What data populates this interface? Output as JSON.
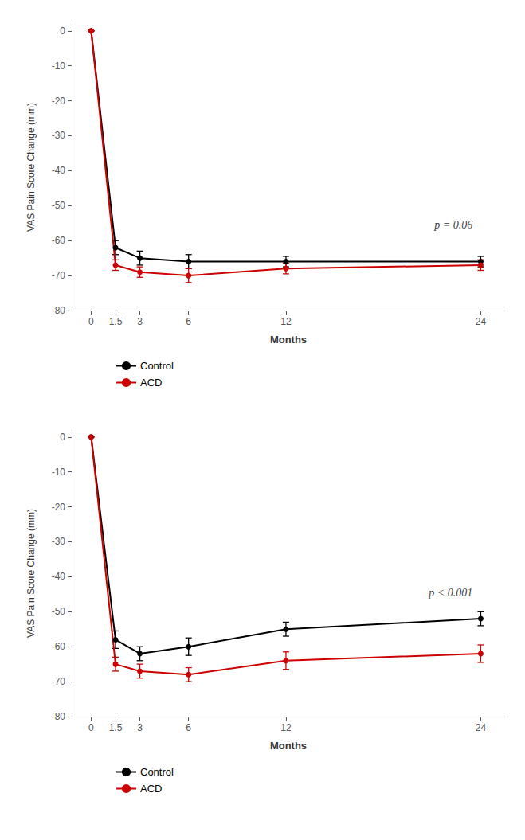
{
  "chart_data": [
    {
      "type": "line",
      "xlabel": "Months",
      "ylabel": "VAS Pain Score Change (mm)",
      "x": [
        0,
        1.5,
        3,
        6,
        12,
        24
      ],
      "xlim": [
        -1.2,
        25.5
      ],
      "xticks": [
        0,
        1.5,
        3,
        6,
        12,
        24
      ],
      "ylim": [
        -80,
        2
      ],
      "yticks": [
        0,
        -10,
        -20,
        -30,
        -40,
        -50,
        -60,
        -70,
        -80
      ],
      "grid": false,
      "legend": "bottom",
      "series": [
        {
          "name": "Control",
          "color": "#000000",
          "marker": "circle",
          "values": [
            0,
            -62,
            -65,
            -66,
            -66,
            -66
          ],
          "errors": [
            0,
            2.0,
            2.0,
            2.0,
            1.5,
            1.5
          ]
        },
        {
          "name": "ACD",
          "color": "#cc0000",
          "marker": "circle",
          "values": [
            0,
            -67,
            -69,
            -70,
            -68,
            -67
          ],
          "errors": [
            0,
            1.5,
            1.5,
            2.0,
            1.5,
            1.5
          ]
        }
      ],
      "annotations": [
        {
          "text": "p = 0.06",
          "x": 23.5,
          "y": -54
        }
      ]
    },
    {
      "type": "line",
      "xlabel": "Months",
      "ylabel": "VAS Pain Score Change (mm)",
      "x": [
        0,
        1.5,
        3,
        6,
        12,
        24
      ],
      "xlim": [
        -1.2,
        25.5
      ],
      "xticks": [
        0,
        1.5,
        3,
        6,
        12,
        24
      ],
      "ylim": [
        -80,
        2
      ],
      "yticks": [
        0,
        -10,
        -20,
        -30,
        -40,
        -50,
        -60,
        -70,
        -80
      ],
      "grid": false,
      "legend": "bottom",
      "series": [
        {
          "name": "Control",
          "color": "#000000",
          "marker": "circle",
          "values": [
            0,
            -58,
            -62,
            -60,
            -55,
            -52
          ],
          "errors": [
            0,
            2.5,
            2.0,
            2.5,
            2.0,
            2.0
          ]
        },
        {
          "name": "ACD",
          "color": "#cc0000",
          "marker": "circle",
          "values": [
            0,
            -65,
            -67,
            -68,
            -64,
            -62
          ],
          "errors": [
            0,
            2.0,
            2.0,
            2.0,
            2.5,
            2.5
          ]
        }
      ],
      "annotations": [
        {
          "text": "p < 0.001",
          "x": 23.5,
          "y": -43
        }
      ]
    }
  ]
}
